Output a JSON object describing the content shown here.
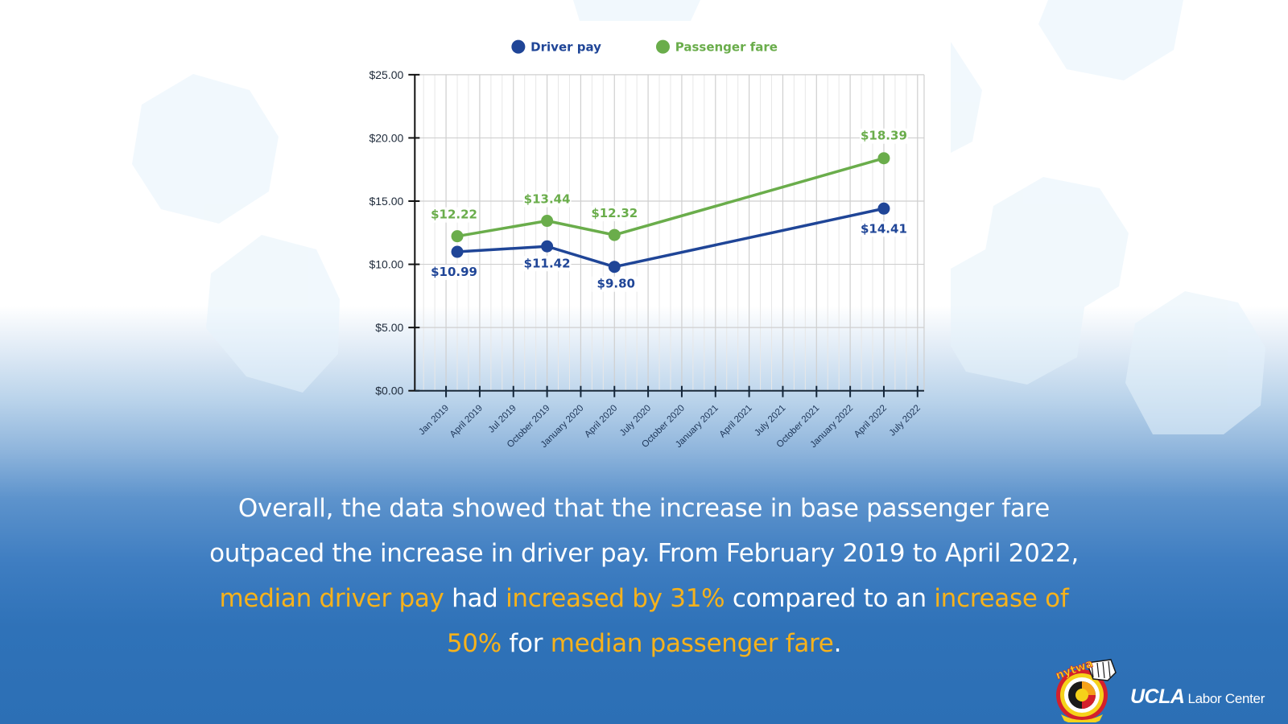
{
  "chart_data": {
    "type": "line",
    "title": "",
    "xlabel": "",
    "ylabel": "",
    "ylim": [
      0,
      25
    ],
    "y_ticks": [
      "$0.00",
      "$5.00",
      "$10.00",
      "$15.00",
      "$20.00",
      "$25.00"
    ],
    "x_ticks": [
      "Jan 2019",
      "April 2019",
      "Jul 2019",
      "October 2019",
      "January 2020",
      "April 2020",
      "July 2020",
      "October 2020",
      "January 2021",
      "April 2021",
      "July 2021",
      "October 2021",
      "January 2022",
      "April 2022",
      "July 2022"
    ],
    "x": [
      "February 2019",
      "October 2019",
      "April 2020",
      "April 2022"
    ],
    "series": [
      {
        "name": "Driver pay",
        "color": "#1f4597",
        "values": [
          10.99,
          11.42,
          9.8,
          14.41
        ],
        "labels": [
          "$10.99",
          "$11.42",
          "$9.80",
          "$14.41"
        ]
      },
      {
        "name": "Passenger fare",
        "color": "#6aad4b",
        "values": [
          12.22,
          13.44,
          12.32,
          18.39
        ],
        "labels": [
          "$12.22",
          "$13.44",
          "$12.32",
          "$18.39"
        ]
      }
    ],
    "grid": true,
    "legend_position": "top"
  },
  "legend": {
    "driver": "Driver pay",
    "fare": "Passenger fare"
  },
  "caption": {
    "line1": "Overall, the data showed that the increase in base passenger fare",
    "line2": "outpaced the increase in driver pay. From February 2019 to April 2022,",
    "line3": [
      {
        "text": "median driver pay",
        "hl": true
      },
      {
        "text": " had ",
        "hl": false
      },
      {
        "text": "increased by 31%",
        "hl": true
      },
      {
        "text": " compared to an ",
        "hl": false
      },
      {
        "text": "increase of",
        "hl": true
      }
    ],
    "line4": [
      {
        "text": "50%",
        "hl": true
      },
      {
        "text": " for ",
        "hl": false
      },
      {
        "text": "median passenger fare",
        "hl": true
      },
      {
        "text": ".",
        "hl": false
      }
    ]
  },
  "logos": {
    "nytwa": "nytwa",
    "ucla_bold": "UCLA",
    "ucla_rest": "Labor Center"
  },
  "colors": {
    "driver": "#1f4597",
    "fare": "#6aad4b",
    "highlight": "#f7b21b",
    "bg_bottom": "#2c6fb5"
  }
}
